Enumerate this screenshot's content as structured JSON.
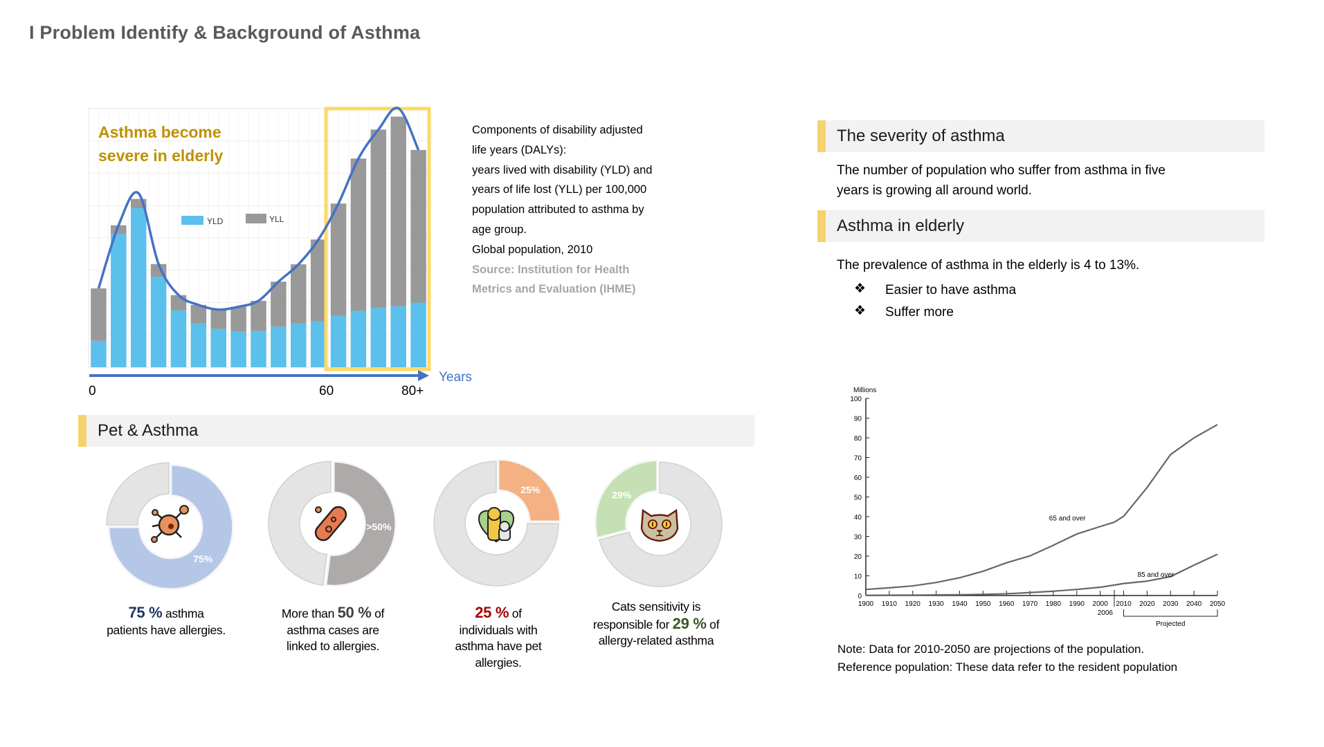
{
  "page": {
    "title": "I Problem Identify & Background of Asthma"
  },
  "dalys_chart": {
    "chart_data": {
      "type": "bar",
      "stacked": true,
      "title": "Asthma become severe in elderly",
      "title_lines": [
        "Asthma become",
        "severe in elderly"
      ],
      "xlabel": "Years",
      "x_tick_labels": [
        "0",
        "60",
        "80+"
      ],
      "legend": [
        "YLD",
        "YLL"
      ],
      "legend_placement": "center",
      "grid": true,
      "highlight_label": "elderly (60 to 80+)",
      "series": [
        {
          "name": "YLD",
          "color": "#5bc0eb",
          "values": [
            10.2,
            51.5,
            61.5,
            35.0,
            22.0,
            16.9,
            14.8,
            13.7,
            14.0,
            15.7,
            16.9,
            17.8,
            19.9,
            21.8,
            22.9,
            23.6,
            25.0
          ]
        },
        {
          "name": "YLL",
          "color": "#999999",
          "values": [
            20.3,
            3.4,
            3.6,
            4.9,
            5.9,
            7.2,
            7.5,
            9.7,
            11.7,
            17.4,
            22.9,
            31.6,
            43.4,
            58.9,
            69.0,
            73.3,
            59.0
          ]
        }
      ],
      "trend_color": "#4472c4",
      "highlight_color": "#ffd966"
    }
  },
  "description": {
    "lines": [
      "Components of disability adjusted",
      "life years (DALYs):",
      "years lived with disability (YLD) and",
      "years of life lost (YLL) per 100,000",
      "population attributed to asthma by",
      "age group.",
      "Global population, 2010"
    ],
    "source_lines": [
      "Source: Institution for Health",
      "Metrics and Evaluation (IHME)"
    ]
  },
  "severity": {
    "heading": "The severity of asthma",
    "text_lines": [
      "The number of population who suffer from asthma in five",
      "years is growing all around world."
    ]
  },
  "elderly": {
    "heading": "Asthma in elderly",
    "text": "The prevalence of asthma in the elderly is 4 to 13%.",
    "bullet_icon": "❖",
    "bullets": [
      "Easier to have asthma",
      "Suffer more"
    ]
  },
  "population_chart": {
    "chart_data": {
      "type": "line",
      "ylabel": "Millions",
      "ylim": [
        0,
        100
      ],
      "y_ticks": [
        0,
        10,
        20,
        30,
        40,
        50,
        60,
        70,
        80,
        90,
        100
      ],
      "x_ticks": [
        1900,
        1910,
        1920,
        1930,
        1940,
        1950,
        1960,
        1970,
        1980,
        1990,
        2000,
        2010,
        2020,
        2030,
        2040,
        2050
      ],
      "xlim": [
        1900,
        2050
      ],
      "extra_x_label": "2006",
      "projected_label": "Projected",
      "projected_range": [
        2010,
        2050
      ],
      "x": [
        1900,
        1910,
        1920,
        1930,
        1940,
        1950,
        1960,
        1970,
        1980,
        1990,
        2000,
        2006,
        2010,
        2020,
        2030,
        2040,
        2050
      ],
      "series": [
        {
          "name": "65 and over",
          "values": [
            3.1,
            3.9,
            4.9,
            6.6,
            9.0,
            12.3,
            16.6,
            20.1,
            25.5,
            31.2,
            35.0,
            37.2,
            40.2,
            54.8,
            71.5,
            80.0,
            86.7
          ]
        },
        {
          "name": "85 and over",
          "values": [
            0.1,
            0.2,
            0.2,
            0.3,
            0.4,
            0.6,
            0.9,
            1.5,
            2.2,
            3.1,
            4.2,
            5.3,
            6.1,
            7.3,
            9.6,
            15.4,
            20.9
          ]
        }
      ],
      "line_color": "#666666"
    },
    "note_lines": [
      "Note: Data for 2010-2050 are projections of the population.",
      "Reference population: These data refer to the resident population"
    ]
  },
  "pets": {
    "heading": "Pet & Asthma",
    "donuts": [
      {
        "icon": "virus-icon",
        "value": 75,
        "label": "75%",
        "color": "#b4c7e7",
        "direction": "clockwise",
        "caption": [
          [
            {
              "t": "75 %",
              "hl": true,
              "color": "#1f3864"
            },
            {
              "t": " asthma"
            }
          ],
          [
            {
              "t": "patients have allergies."
            }
          ]
        ]
      },
      {
        "icon": "bacteria-icon",
        "value": 52,
        "label": ">50%",
        "color": "#aeaaaa",
        "direction": "clockwise",
        "caption": [
          [
            {
              "t": "More than "
            },
            {
              "t": "50 %",
              "hl": true,
              "color": "#404040"
            },
            {
              "t": " of"
            }
          ],
          [
            {
              "t": "asthma cases are"
            }
          ],
          [
            {
              "t": "linked to allergies."
            }
          ]
        ]
      },
      {
        "icon": "pets-heart-icon",
        "value": 25,
        "label": "25%",
        "color": "#f4b183",
        "direction": "clockwise",
        "caption": [
          [
            {
              "t": "25 %",
              "hl": true,
              "color": "#a50000"
            },
            {
              "t": " of"
            }
          ],
          [
            {
              "t": "individuals with"
            }
          ],
          [
            {
              "t": "asthma have pet"
            }
          ],
          [
            {
              "t": "allergies."
            }
          ]
        ]
      },
      {
        "icon": "cat-face-icon",
        "value": 29,
        "label": "29%",
        "color": "#c5e0b4",
        "direction": "counterclockwise",
        "caption": [
          [
            {
              "t": "Cats sensitivity is"
            }
          ],
          [
            {
              "t": "responsible for "
            },
            {
              "t": "29 %",
              "hl": true,
              "color": "#385723"
            },
            {
              "t": " of"
            }
          ],
          [
            {
              "t": "allergy-related asthma"
            }
          ]
        ]
      }
    ],
    "rest_color": "#e4e4e4"
  }
}
